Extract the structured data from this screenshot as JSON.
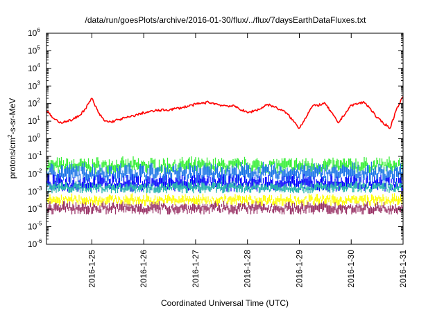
{
  "chart_data": {
    "type": "line",
    "title": "/data/run/goesPlots/archive/2016-01-30/flux/../flux/7daysEarthDataFluxes.txt",
    "xlabel": "Coordinated Universal Time (UTC)",
    "ylabel": {
      "pre": "protons/cm",
      "sup": "2",
      "post": "-s-sr-MeV"
    },
    "x_range": [
      "2016-01-24T03:00",
      "2016-01-31T00:00"
    ],
    "x_ticks": [
      "2016-1-25",
      "2016-1-26",
      "2016-1-27",
      "2016-1-28",
      "2016-1-29",
      "2016-1-30",
      "2016-1-31"
    ],
    "y_scale": "log",
    "ylim": [
      1e-06,
      1000000.0
    ],
    "y_ticks": [
      {
        "base": "10",
        "exp": "-6"
      },
      {
        "base": "10",
        "exp": "-5"
      },
      {
        "base": "10",
        "exp": "-4"
      },
      {
        "base": "10",
        "exp": "-3"
      },
      {
        "base": "10",
        "exp": "-2"
      },
      {
        "base": "10",
        "exp": "-1"
      },
      {
        "base": "10",
        "exp": "0"
      },
      {
        "base": "10",
        "exp": "1"
      },
      {
        "base": "10",
        "exp": "2"
      },
      {
        "base": "10",
        "exp": "3"
      },
      {
        "base": "10",
        "exp": "4"
      },
      {
        "base": "10",
        "exp": "5"
      },
      {
        "base": "10",
        "exp": "6"
      }
    ],
    "grid": false,
    "series": [
      {
        "color": "#ff0000",
        "style": "line",
        "x": [
          "2016-01-24T03:00",
          "2016-01-24T06:00",
          "2016-01-24T09:00",
          "2016-01-24T12:00",
          "2016-01-24T15:00",
          "2016-01-24T18:00",
          "2016-01-24T21:00",
          "2016-01-25T00:00",
          "2016-01-25T03:00",
          "2016-01-25T06:00",
          "2016-01-25T09:00",
          "2016-01-25T12:00",
          "2016-01-25T18:00",
          "2016-01-26T00:00",
          "2016-01-26T06:00",
          "2016-01-26T12:00",
          "2016-01-26T18:00",
          "2016-01-27T00:00",
          "2016-01-27T06:00",
          "2016-01-27T12:00",
          "2016-01-27T18:00",
          "2016-01-28T00:00",
          "2016-01-28T06:00",
          "2016-01-28T09:00",
          "2016-01-28T12:00",
          "2016-01-28T18:00",
          "2016-01-29T00:00",
          "2016-01-29T06:00",
          "2016-01-29T12:00",
          "2016-01-29T18:00",
          "2016-01-30T00:00",
          "2016-01-30T06:00",
          "2016-01-30T09:00",
          "2016-01-30T12:00",
          "2016-01-30T18:00",
          "2016-01-30T21:00",
          "2016-01-31T00:00"
        ],
        "y": [
          40,
          15,
          8,
          10,
          12,
          20,
          50,
          200,
          30,
          10,
          9,
          12,
          18,
          30,
          40,
          45,
          60,
          90,
          120,
          80,
          70,
          30,
          50,
          90,
          70,
          30,
          4,
          70,
          100,
          8,
          80,
          120,
          50,
          15,
          4,
          50,
          250
        ]
      },
      {
        "color": "#33ee33",
        "style": "band",
        "band": [
          0.01,
          0.1
        ]
      },
      {
        "color": "#1a73e8",
        "style": "band",
        "band": [
          0.003,
          0.05
        ]
      },
      {
        "color": "#0000ff",
        "style": "band",
        "band": [
          0.001,
          0.01
        ]
      },
      {
        "color": "#20b2aa",
        "style": "band",
        "band": [
          0.0008,
          0.004
        ]
      },
      {
        "color": "#ffff00",
        "style": "band",
        "band": [
          0.00015,
          0.0008
        ]
      },
      {
        "color": "#993366",
        "style": "band",
        "band": [
          5e-05,
          0.0003
        ]
      }
    ]
  }
}
